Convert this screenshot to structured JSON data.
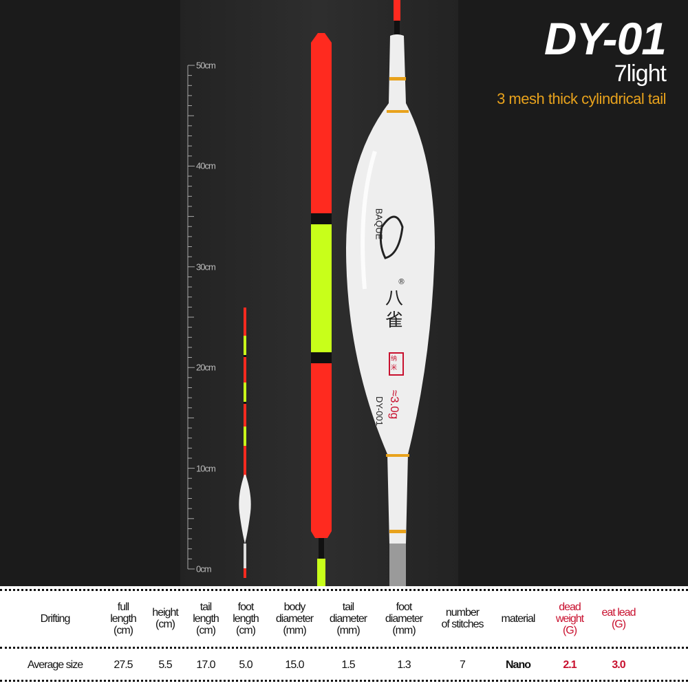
{
  "product": {
    "title": "DY-01",
    "subtitle": "7light",
    "description": "3 mesh thick cylindrical tail"
  },
  "ruler": {
    "labels": [
      "50cm",
      "40cm",
      "30cm",
      "20cm",
      "10cm",
      "0cm"
    ]
  },
  "float_marks": {
    "brand": "BAQUE",
    "chinese_name": "八雀",
    "registered": "®",
    "stamp": "纳米",
    "weight": "≈3.0g",
    "model": "DY-001"
  },
  "colors": {
    "background": "#1b1b1b",
    "tail_red": "#ff2a1f",
    "tail_yellow": "#c8ff1a",
    "accent_orange": "#e8a21c",
    "table_red": "#c8102e"
  },
  "table": {
    "headers": [
      {
        "lines": [
          "Drifting"
        ]
      },
      {
        "lines": [
          "full",
          "length",
          "(cm)"
        ]
      },
      {
        "lines": [
          "height",
          "(cm)"
        ]
      },
      {
        "lines": [
          "tail",
          "length",
          "(cm)"
        ]
      },
      {
        "lines": [
          "foot",
          "length",
          "(cm)"
        ]
      },
      {
        "lines": [
          "body",
          "diameter",
          "(mm)"
        ]
      },
      {
        "lines": [
          "tail",
          "diameter",
          "(mm)"
        ]
      },
      {
        "lines": [
          "foot",
          "diameter",
          "(mm)"
        ]
      },
      {
        "lines": [
          "number",
          "of stitches"
        ]
      },
      {
        "lines": [
          "material"
        ]
      },
      {
        "lines": [
          "dead",
          "weight",
          "(G)"
        ]
      },
      {
        "lines": [
          "eat lead",
          "(G)"
        ]
      }
    ],
    "row": [
      "Average size",
      "27.5",
      "5.5",
      "17.0",
      "5.0",
      "15.0",
      "1.5",
      "1.3",
      "7",
      "Nano",
      "2.1",
      "3.0"
    ]
  }
}
